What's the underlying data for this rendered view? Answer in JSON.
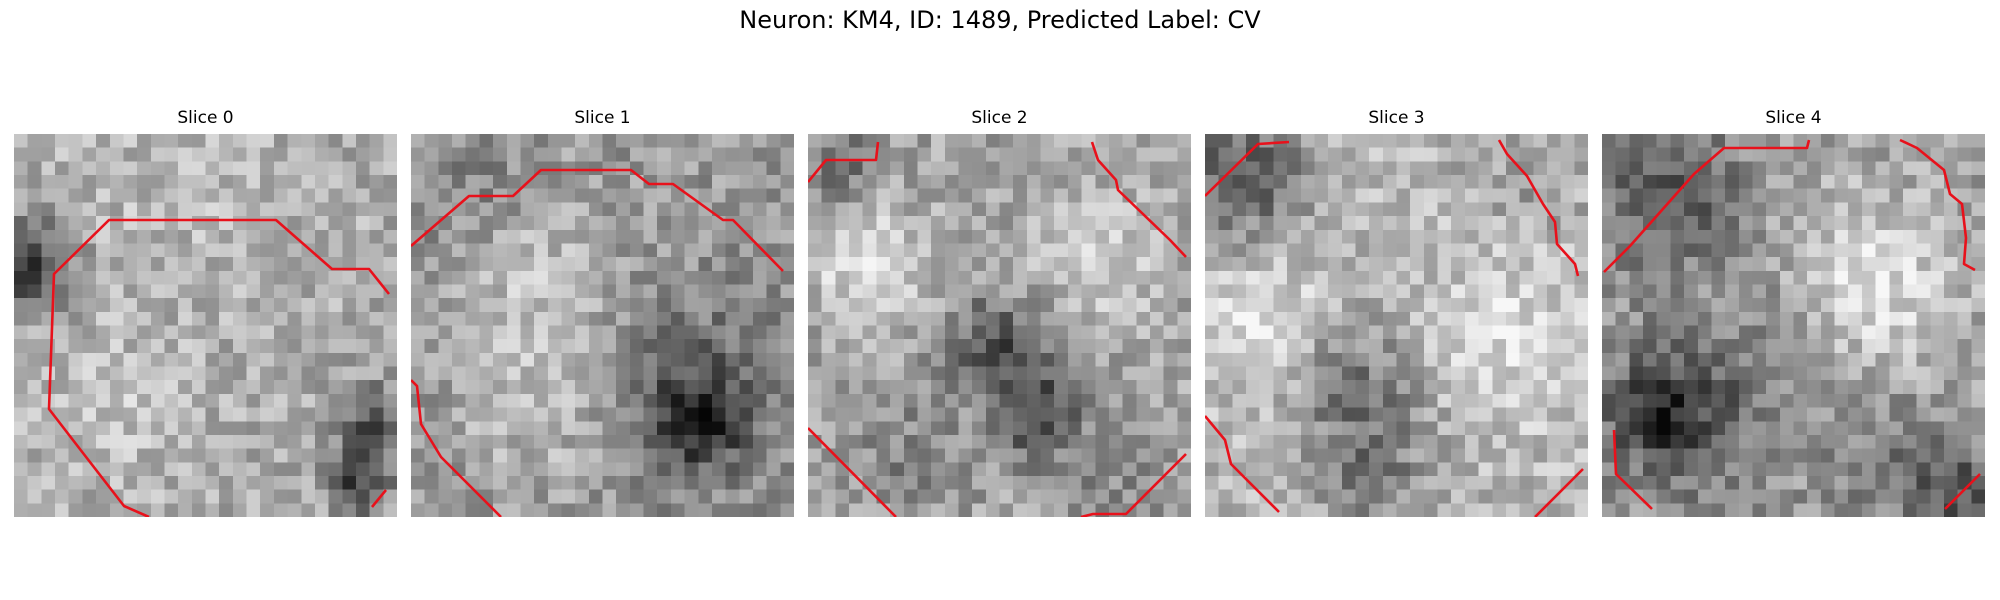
{
  "figure": {
    "title": "Neuron: KM4, ID: 1489, Predicted Label: CV"
  },
  "panels": [
    {
      "title": "Slice 0"
    },
    {
      "title": "Slice 1"
    },
    {
      "title": "Slice 2"
    },
    {
      "title": "Slice 3"
    },
    {
      "title": "Slice 4"
    }
  ],
  "contour_color": "#e8111b"
}
